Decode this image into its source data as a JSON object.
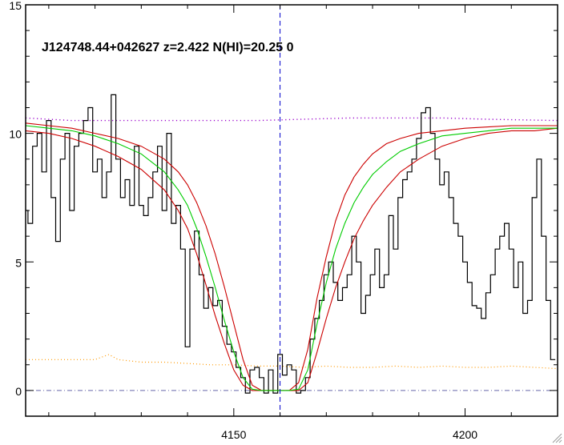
{
  "chart_data": {
    "type": "line",
    "title": "J124748.44+042627 z=2.422 N(HI)=20.25 0",
    "xlabel": "",
    "ylabel": "",
    "xlim": [
      4105,
      4220
    ],
    "ylim": [
      -1,
      15
    ],
    "x_ticks": [
      4150,
      4200
    ],
    "y_ticks": [
      0,
      5,
      10,
      15
    ],
    "grid": false,
    "marker_line_x": 4160,
    "colors": {
      "flux": "#000000",
      "fit": "#00cc00",
      "fit_bounds": "#cc0000",
      "continuum": "#9900cc",
      "error": "#ff9900",
      "zero_line": "#6666aa",
      "marker_line": "#0000cc"
    },
    "series": [
      {
        "style": "step",
        "x": [
          4105,
          4106,
          4107,
          4108,
          4109,
          4110,
          4111,
          4112,
          4113,
          4114,
          4115,
          4116,
          4117,
          4118,
          4119,
          4120,
          4121,
          4122,
          4123,
          4124,
          4125,
          4126,
          4127,
          4128,
          4129,
          4130,
          4131,
          4132,
          4133,
          4134,
          4135,
          4136,
          4137,
          4138,
          4139,
          4140,
          4141,
          4142,
          4143,
          4144,
          4145,
          4146,
          4147,
          4148,
          4149,
          4150,
          4151,
          4152,
          4153,
          4154,
          4155,
          4156,
          4157,
          4158,
          4159,
          4160,
          4161,
          4162,
          4163,
          4164,
          4165,
          4166,
          4167,
          4168,
          4169,
          4170,
          4171,
          4172,
          4173,
          4174,
          4175,
          4176,
          4177,
          4178,
          4179,
          4180,
          4181,
          4182,
          4183,
          4184,
          4185,
          4186,
          4187,
          4188,
          4189,
          4190,
          4191,
          4192,
          4193,
          4194,
          4195,
          4196,
          4197,
          4198,
          4199,
          4200,
          4201,
          4202,
          4203,
          4204,
          4205,
          4206,
          4207,
          4208,
          4209,
          4210,
          4211,
          4212,
          4213,
          4214,
          4215,
          4216,
          4217,
          4218,
          4219
        ],
        "values": [
          7.0,
          6.5,
          9.5,
          10.0,
          8.5,
          10.5,
          7.5,
          5.8,
          9.0,
          10.0,
          7.0,
          9.5,
          10.0,
          10.5,
          11.0,
          8.5,
          9.0,
          7.5,
          8.5,
          11.5,
          9.0,
          7.5,
          8.2,
          7.2,
          9.5,
          7.2,
          6.8,
          7.5,
          8.5,
          9.5,
          7.0,
          10.0,
          6.5,
          7.2,
          5.5,
          1.7,
          5.5,
          6.2,
          4.5,
          3.2,
          4.0,
          3.3,
          3.5,
          2.5,
          1.8,
          1.5,
          0.9,
          0.5,
          -0.1,
          0.8,
          0.9,
          0.5,
          -0.1,
          0.8,
          -0.1,
          1.4,
          0.6,
          1.0,
          0.8,
          -0.1,
          0.0,
          0.5,
          2.0,
          2.8,
          3.5,
          4.5,
          5.0,
          4.2,
          3.5,
          4.0,
          4.5,
          6.0,
          5.0,
          3.0,
          3.7,
          4.5,
          5.5,
          4.0,
          4.5,
          6.8,
          5.5,
          7.5,
          8.2,
          8.5,
          9.0,
          9.8,
          10.8,
          11.0,
          10.0,
          9.0,
          8.0,
          8.5,
          7.5,
          6.5,
          6.0,
          5.0,
          4.2,
          3.3,
          3.2,
          2.8,
          3.8,
          4.5,
          5.5,
          6.0,
          6.5,
          5.5,
          4.0,
          5.0,
          3.0,
          3.5,
          7.5,
          9.0,
          6.0,
          3.5,
          1.2
        ]
      },
      {
        "style": "fit",
        "x": [
          4105,
          4110,
          4115,
          4120,
          4125,
          4130,
          4135,
          4138,
          4140,
          4142,
          4144,
          4146,
          4148,
          4150,
          4152,
          4154,
          4156,
          4158,
          4160,
          4162,
          4164,
          4166,
          4168,
          4170,
          4172,
          4174,
          4176,
          4178,
          4180,
          4183,
          4186,
          4190,
          4195,
          4200,
          4205,
          4210,
          4215,
          4220
        ],
        "values": [
          10.3,
          10.2,
          10.1,
          9.9,
          9.6,
          9.2,
          8.5,
          7.8,
          7.2,
          6.3,
          5.2,
          4.0,
          2.7,
          1.5,
          0.5,
          0.05,
          0.0,
          0.0,
          0.0,
          0.0,
          0.05,
          0.8,
          2.6,
          4.2,
          5.5,
          6.5,
          7.3,
          7.9,
          8.4,
          8.9,
          9.3,
          9.6,
          9.9,
          10.0,
          10.1,
          10.2,
          10.2,
          10.2
        ]
      },
      {
        "style": "fit-upper",
        "x": [
          4105,
          4110,
          4115,
          4120,
          4125,
          4130,
          4135,
          4138,
          4140,
          4142,
          4144,
          4146,
          4148,
          4150,
          4152,
          4154,
          4156,
          4158,
          4160,
          4162,
          4164,
          4166,
          4168,
          4170,
          4172,
          4174,
          4176,
          4178,
          4180,
          4183,
          4186,
          4190,
          4195,
          4200,
          4205,
          4210,
          4215,
          4220
        ],
        "values": [
          10.4,
          10.3,
          10.2,
          10.0,
          9.8,
          9.5,
          9.0,
          8.5,
          8.0,
          7.3,
          6.4,
          5.3,
          4.0,
          2.6,
          1.2,
          0.2,
          0.0,
          0.0,
          0.0,
          0.0,
          0.3,
          1.6,
          3.6,
          5.2,
          6.6,
          7.6,
          8.3,
          8.8,
          9.2,
          9.6,
          9.8,
          10.0,
          10.1,
          10.2,
          10.25,
          10.3,
          10.3,
          10.3
        ]
      },
      {
        "style": "fit-lower",
        "x": [
          4105,
          4110,
          4115,
          4120,
          4125,
          4130,
          4135,
          4138,
          4140,
          4142,
          4144,
          4146,
          4148,
          4150,
          4152,
          4154,
          4156,
          4158,
          4160,
          4162,
          4164,
          4166,
          4168,
          4170,
          4172,
          4174,
          4176,
          4178,
          4180,
          4183,
          4186,
          4190,
          4195,
          4200,
          4205,
          4210,
          4215,
          4220
        ],
        "values": [
          10.1,
          10.0,
          9.8,
          9.5,
          9.1,
          8.6,
          7.8,
          7.0,
          6.3,
          5.3,
          4.1,
          2.9,
          1.8,
          0.8,
          0.2,
          0.0,
          0.0,
          0.0,
          0.0,
          0.0,
          0.0,
          0.3,
          1.5,
          2.8,
          4.0,
          5.0,
          5.9,
          6.6,
          7.2,
          7.9,
          8.5,
          9.0,
          9.5,
          9.8,
          10.0,
          10.1,
          10.1,
          10.2
        ]
      },
      {
        "style": "dotted",
        "x": [
          4105,
          4115,
          4125,
          4135,
          4145,
          4155,
          4165,
          4175,
          4185,
          4195,
          4205,
          4220
        ],
        "values": [
          10.6,
          10.5,
          10.5,
          10.5,
          10.5,
          10.5,
          10.55,
          10.6,
          10.6,
          10.6,
          10.55,
          10.5
        ]
      },
      {
        "style": "dotted-error",
        "x": [
          4105,
          4110,
          4115,
          4120,
          4123,
          4125,
          4130,
          4135,
          4140,
          4145,
          4150,
          4155,
          4160,
          4165,
          4170,
          4175,
          4180,
          4185,
          4190,
          4195,
          4200,
          4205,
          4210,
          4215,
          4220
        ],
        "values": [
          1.2,
          1.2,
          1.2,
          1.2,
          1.4,
          1.2,
          1.1,
          1.1,
          1.05,
          1.0,
          1.0,
          0.95,
          0.95,
          0.9,
          0.95,
          0.9,
          0.9,
          0.95,
          0.9,
          0.95,
          0.9,
          0.9,
          0.95,
          0.9,
          0.85
        ]
      },
      {
        "style": "dash-dot",
        "x": [
          4105,
          4220
        ],
        "values": [
          0,
          0
        ]
      }
    ]
  }
}
